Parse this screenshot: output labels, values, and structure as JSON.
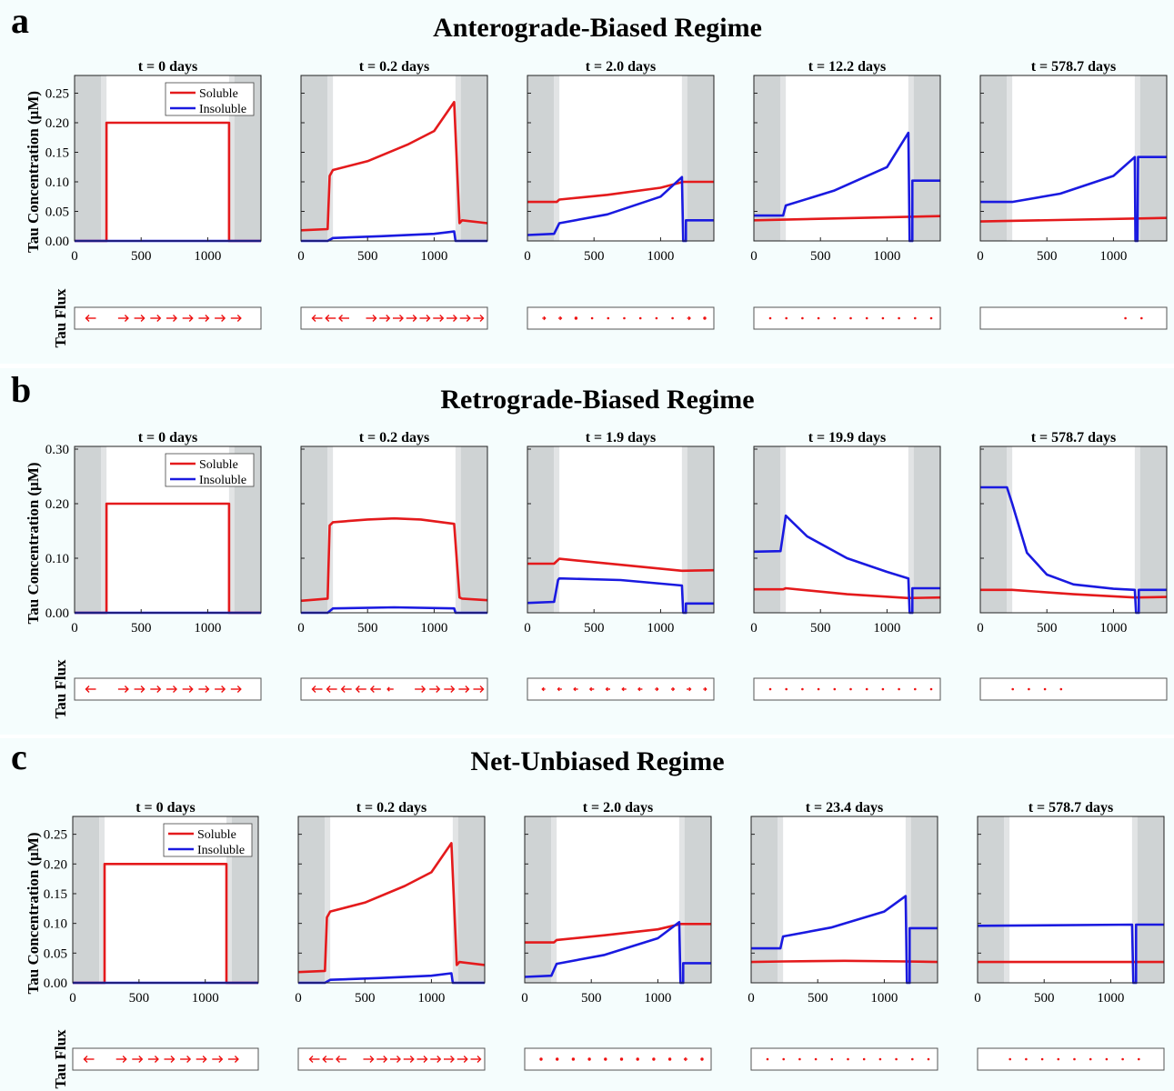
{
  "colors": {
    "band_bg": "#f5fdfd",
    "soluble": "#e41a1c",
    "insoluble": "#1a1ae0",
    "shade_dark": "#cfd3d4",
    "shade_light": "#e2e4e5",
    "flux_arrow": "#ee1111"
  },
  "figure": {
    "ylabel": "Tau Concentration (μM)",
    "flux_label": "Tau Flux",
    "legend": [
      "Soluble",
      "Insoluble"
    ]
  },
  "chart_data": [
    {
      "letter": "a",
      "title": "Anterograde-Biased Regime",
      "type": "line",
      "xlim": [
        0,
        1400
      ],
      "xticks": [
        "0",
        "500",
        "1000"
      ],
      "ylim": [
        0,
        0.28
      ],
      "yticks": [
        "0.00",
        "0.05",
        "0.10",
        "0.15",
        "0.20",
        "0.25"
      ],
      "subplots": [
        {
          "title": "t = 0 days",
          "series": [
            {
              "name": "Soluble",
              "x": [
                0,
                240,
                240,
                1160,
                1160,
                1400
              ],
              "y": [
                0,
                0,
                0.2,
                0.2,
                0,
                0
              ]
            },
            {
              "name": "Insoluble",
              "x": [
                0,
                1400
              ],
              "y": [
                0,
                0
              ]
            }
          ],
          "flux": [
            -1,
            0,
            1,
            1,
            1,
            1,
            1,
            1,
            1,
            1,
            0
          ]
        },
        {
          "title": "t = 0.2 days",
          "series": [
            {
              "name": "Soluble",
              "x": [
                0,
                200,
                215,
                240,
                500,
                800,
                1000,
                1150,
                1190,
                1210,
                1400
              ],
              "y": [
                0.018,
                0.02,
                0.11,
                0.12,
                0.135,
                0.163,
                0.186,
                0.235,
                0.03,
                0.035,
                0.03
              ]
            },
            {
              "name": "Insoluble",
              "x": [
                0,
                200,
                240,
                600,
                1000,
                1150,
                1160,
                1400
              ],
              "y": [
                0,
                0,
                0.005,
                0.008,
                0.012,
                0.016,
                0,
                0
              ]
            }
          ],
          "flux": [
            -1,
            -1,
            -1,
            0,
            1,
            1,
            1,
            1,
            1,
            1,
            1,
            1,
            1
          ]
        },
        {
          "title": "t = 2.0 days",
          "series": [
            {
              "name": "Soluble",
              "x": [
                0,
                220,
                240,
                600,
                1000,
                1170,
                1400
              ],
              "y": [
                0.066,
                0.066,
                0.07,
                0.078,
                0.09,
                0.1,
                0.1
              ]
            },
            {
              "name": "Insoluble",
              "x": [
                0,
                200,
                240,
                600,
                1000,
                1160,
                1170,
                1190,
                1190,
                1400
              ],
              "y": [
                0.01,
                0.012,
                0.03,
                0.045,
                0.075,
                0.108,
                0,
                0,
                0.035,
                0.035
              ]
            },
            {
              "name": "",
              "x": [],
              "y": []
            }
          ],
          "flux": [
            0.3,
            0.3,
            0.2,
            0.1,
            0.1,
            0.1,
            0.1,
            0.1,
            0.1,
            0.3,
            0.2
          ]
        },
        {
          "title": "t = 12.2 days",
          "series": [
            {
              "name": "Soluble",
              "x": [
                0,
                1400
              ],
              "y": [
                0.035,
                0.042
              ]
            },
            {
              "name": "Insoluble",
              "x": [
                0,
                220,
                240,
                600,
                1000,
                1160,
                1170,
                1190,
                1190,
                1400
              ],
              "y": [
                0.043,
                0.043,
                0.06,
                0.085,
                0.125,
                0.183,
                0,
                0,
                0.102,
                0.102
              ]
            }
          ],
          "flux": [
            0.1,
            0.1,
            0.1,
            0.1,
            0.1,
            0.1,
            0.1,
            0.1,
            0.1,
            0.1,
            0.1
          ]
        },
        {
          "title": "t = 578.7 days",
          "series": [
            {
              "name": "Soluble",
              "x": [
                0,
                1400
              ],
              "y": [
                0.033,
                0.039
              ]
            },
            {
              "name": "Insoluble",
              "x": [
                0,
                240,
                600,
                1000,
                1160,
                1165,
                1180,
                1185,
                1400
              ],
              "y": [
                0.066,
                0.066,
                0.08,
                0.11,
                0.142,
                0,
                0,
                0.142,
                0.142
              ]
            }
          ],
          "flux": [
            0,
            0,
            0,
            0,
            0,
            0,
            0,
            0,
            0.1,
            0.1,
            0
          ]
        }
      ]
    },
    {
      "letter": "b",
      "title": "Retrograde-Biased Regime",
      "type": "line",
      "xlim": [
        0,
        1400
      ],
      "xticks": [
        "0",
        "500",
        "1000"
      ],
      "ylim": [
        0,
        0.305
      ],
      "yticks": [
        "0.00",
        "0.10",
        "0.20",
        "0.30"
      ],
      "subplots": [
        {
          "title": "t = 0 days",
          "series": [
            {
              "name": "Soluble",
              "x": [
                0,
                240,
                240,
                1160,
                1160,
                1400
              ],
              "y": [
                0,
                0,
                0.2,
                0.2,
                0,
                0
              ]
            },
            {
              "name": "Insoluble",
              "x": [
                0,
                1400
              ],
              "y": [
                0,
                0
              ]
            }
          ],
          "flux": [
            -1,
            0,
            1,
            1,
            1,
            1,
            1,
            1,
            1,
            1,
            0
          ]
        },
        {
          "title": "t = 0.2 days",
          "series": [
            {
              "name": "Soluble",
              "x": [
                0,
                200,
                215,
                240,
                500,
                700,
                900,
                1150,
                1190,
                1210,
                1400
              ],
              "y": [
                0.022,
                0.026,
                0.16,
                0.166,
                0.171,
                0.173,
                0.171,
                0.163,
                0.028,
                0.026,
                0.023
              ]
            },
            {
              "name": "Insoluble",
              "x": [
                0,
                200,
                240,
                700,
                1150,
                1160,
                1400
              ],
              "y": [
                0,
                0,
                0.008,
                0.01,
                0.008,
                0,
                0
              ]
            }
          ],
          "flux": [
            -1,
            -1,
            -1,
            -1,
            -1,
            -0.6,
            0,
            1,
            1,
            1,
            1,
            1
          ]
        },
        {
          "title": "t = 1.9 days",
          "series": [
            {
              "name": "Soluble",
              "x": [
                0,
                200,
                240,
                700,
                1160,
                1400
              ],
              "y": [
                0.09,
                0.09,
                0.099,
                0.088,
                0.077,
                0.078
              ]
            },
            {
              "name": "Insoluble",
              "x": [
                0,
                200,
                230,
                240,
                700,
                1160,
                1170,
                1190,
                1190,
                1400
              ],
              "y": [
                0.018,
                0.02,
                0.06,
                0.063,
                0.06,
                0.05,
                0,
                0,
                0.017,
                0.017
              ]
            }
          ],
          "flux": [
            -0.3,
            -0.4,
            -0.4,
            -0.4,
            -0.4,
            -0.4,
            -0.4,
            0.3,
            0.3,
            0.4,
            0.3
          ]
        },
        {
          "title": "t = 19.9 days",
          "series": [
            {
              "name": "Soluble",
              "x": [
                0,
                220,
                240,
                700,
                1160,
                1400
              ],
              "y": [
                0.043,
                0.043,
                0.045,
                0.034,
                0.027,
                0.028
              ]
            },
            {
              "name": "Insoluble",
              "x": [
                0,
                200,
                240,
                400,
                700,
                1000,
                1160,
                1170,
                1190,
                1190,
                1400
              ],
              "y": [
                0.112,
                0.113,
                0.178,
                0.14,
                0.1,
                0.075,
                0.063,
                0,
                0,
                0.045,
                0.045
              ]
            }
          ],
          "flux": [
            0.1,
            0.1,
            0.1,
            0.1,
            0.1,
            0.1,
            0.1,
            0.1,
            0.1,
            0.1,
            0.1
          ]
        },
        {
          "title": "t = 578.7 days",
          "series": [
            {
              "name": "Soluble",
              "x": [
                0,
                240,
                700,
                1160,
                1400
              ],
              "y": [
                0.042,
                0.042,
                0.034,
                0.028,
                0.029
              ]
            },
            {
              "name": "Insoluble",
              "x": [
                0,
                200,
                240,
                350,
                500,
                700,
                1000,
                1160,
                1170,
                1190,
                1190,
                1400
              ],
              "y": [
                0.23,
                0.23,
                0.2,
                0.11,
                0.07,
                0.052,
                0.044,
                0.042,
                0,
                0,
                0.042,
                0.042
              ]
            }
          ],
          "flux": [
            0,
            0.1,
            0.1,
            0.1,
            0.1,
            0,
            0,
            0,
            0,
            0,
            0
          ]
        }
      ]
    },
    {
      "letter": "c",
      "title": "Net-Unbiased Regime",
      "type": "line",
      "xlim": [
        0,
        1400
      ],
      "xticks": [
        "0",
        "500",
        "1000"
      ],
      "ylim": [
        0,
        0.28
      ],
      "yticks": [
        "0.00",
        "0.05",
        "0.10",
        "0.15",
        "0.20",
        "0.25"
      ],
      "subplots": [
        {
          "title": "t = 0 days",
          "series": [
            {
              "name": "Soluble",
              "x": [
                0,
                240,
                240,
                1160,
                1160,
                1400
              ],
              "y": [
                0,
                0,
                0.2,
                0.2,
                0,
                0
              ]
            },
            {
              "name": "Insoluble",
              "x": [
                0,
                1400
              ],
              "y": [
                0,
                0
              ]
            }
          ],
          "flux": [
            -1,
            0,
            1,
            1,
            1,
            1,
            1,
            1,
            1,
            1,
            0
          ]
        },
        {
          "title": "t = 0.2 days",
          "series": [
            {
              "name": "Soluble",
              "x": [
                0,
                200,
                215,
                240,
                500,
                800,
                1000,
                1150,
                1190,
                1210,
                1400
              ],
              "y": [
                0.018,
                0.02,
                0.11,
                0.12,
                0.135,
                0.163,
                0.186,
                0.235,
                0.03,
                0.035,
                0.03
              ]
            },
            {
              "name": "Insoluble",
              "x": [
                0,
                200,
                240,
                600,
                1000,
                1150,
                1160,
                1400
              ],
              "y": [
                0,
                0,
                0.005,
                0.008,
                0.012,
                0.016,
                0,
                0
              ]
            }
          ],
          "flux": [
            -1,
            -1,
            -1,
            0,
            1,
            1,
            1,
            1,
            1,
            1,
            1,
            1,
            1
          ]
        },
        {
          "title": "t = 2.0 days",
          "series": [
            {
              "name": "Soluble",
              "x": [
                0,
                220,
                240,
                600,
                1000,
                1170,
                1400
              ],
              "y": [
                0.068,
                0.068,
                0.072,
                0.08,
                0.09,
                0.099,
                0.099
              ]
            },
            {
              "name": "Insoluble",
              "x": [
                0,
                200,
                240,
                600,
                1000,
                1160,
                1170,
                1190,
                1190,
                1400
              ],
              "y": [
                0.01,
                0.012,
                0.032,
                0.047,
                0.075,
                0.102,
                0,
                0,
                0.033,
                0.033
              ]
            }
          ],
          "flux": [
            0.2,
            0.2,
            0.2,
            0.2,
            0.2,
            0.2,
            0.2,
            0.2,
            0.2,
            -0.3,
            0.2
          ]
        },
        {
          "title": "t = 23.4 days",
          "series": [
            {
              "name": "Soluble",
              "x": [
                0,
                240,
                700,
                1160,
                1400
              ],
              "y": [
                0.035,
                0.036,
                0.037,
                0.036,
                0.035
              ]
            },
            {
              "name": "Insoluble",
              "x": [
                0,
                220,
                240,
                600,
                1000,
                1160,
                1170,
                1190,
                1190,
                1400
              ],
              "y": [
                0.058,
                0.058,
                0.078,
                0.093,
                0.12,
                0.146,
                0,
                0,
                0.092,
                0.092
              ]
            }
          ],
          "flux": [
            0.1,
            0.1,
            0.1,
            0.1,
            0.1,
            0.1,
            0.1,
            0.1,
            0.1,
            0.1,
            0.1
          ]
        },
        {
          "title": "t = 578.7 days",
          "series": [
            {
              "name": "Soluble",
              "x": [
                0,
                1400
              ],
              "y": [
                0.035,
                0.035
              ]
            },
            {
              "name": "Insoluble",
              "x": [
                0,
                1160,
                1170,
                1190,
                1190,
                1400
              ],
              "y": [
                0.096,
                0.098,
                0,
                0,
                0.098,
                0.098
              ]
            }
          ],
          "flux": [
            0,
            0.1,
            0.1,
            0.1,
            0.1,
            0.1,
            0.1,
            0.1,
            0.1,
            0.1,
            0
          ]
        }
      ]
    }
  ]
}
